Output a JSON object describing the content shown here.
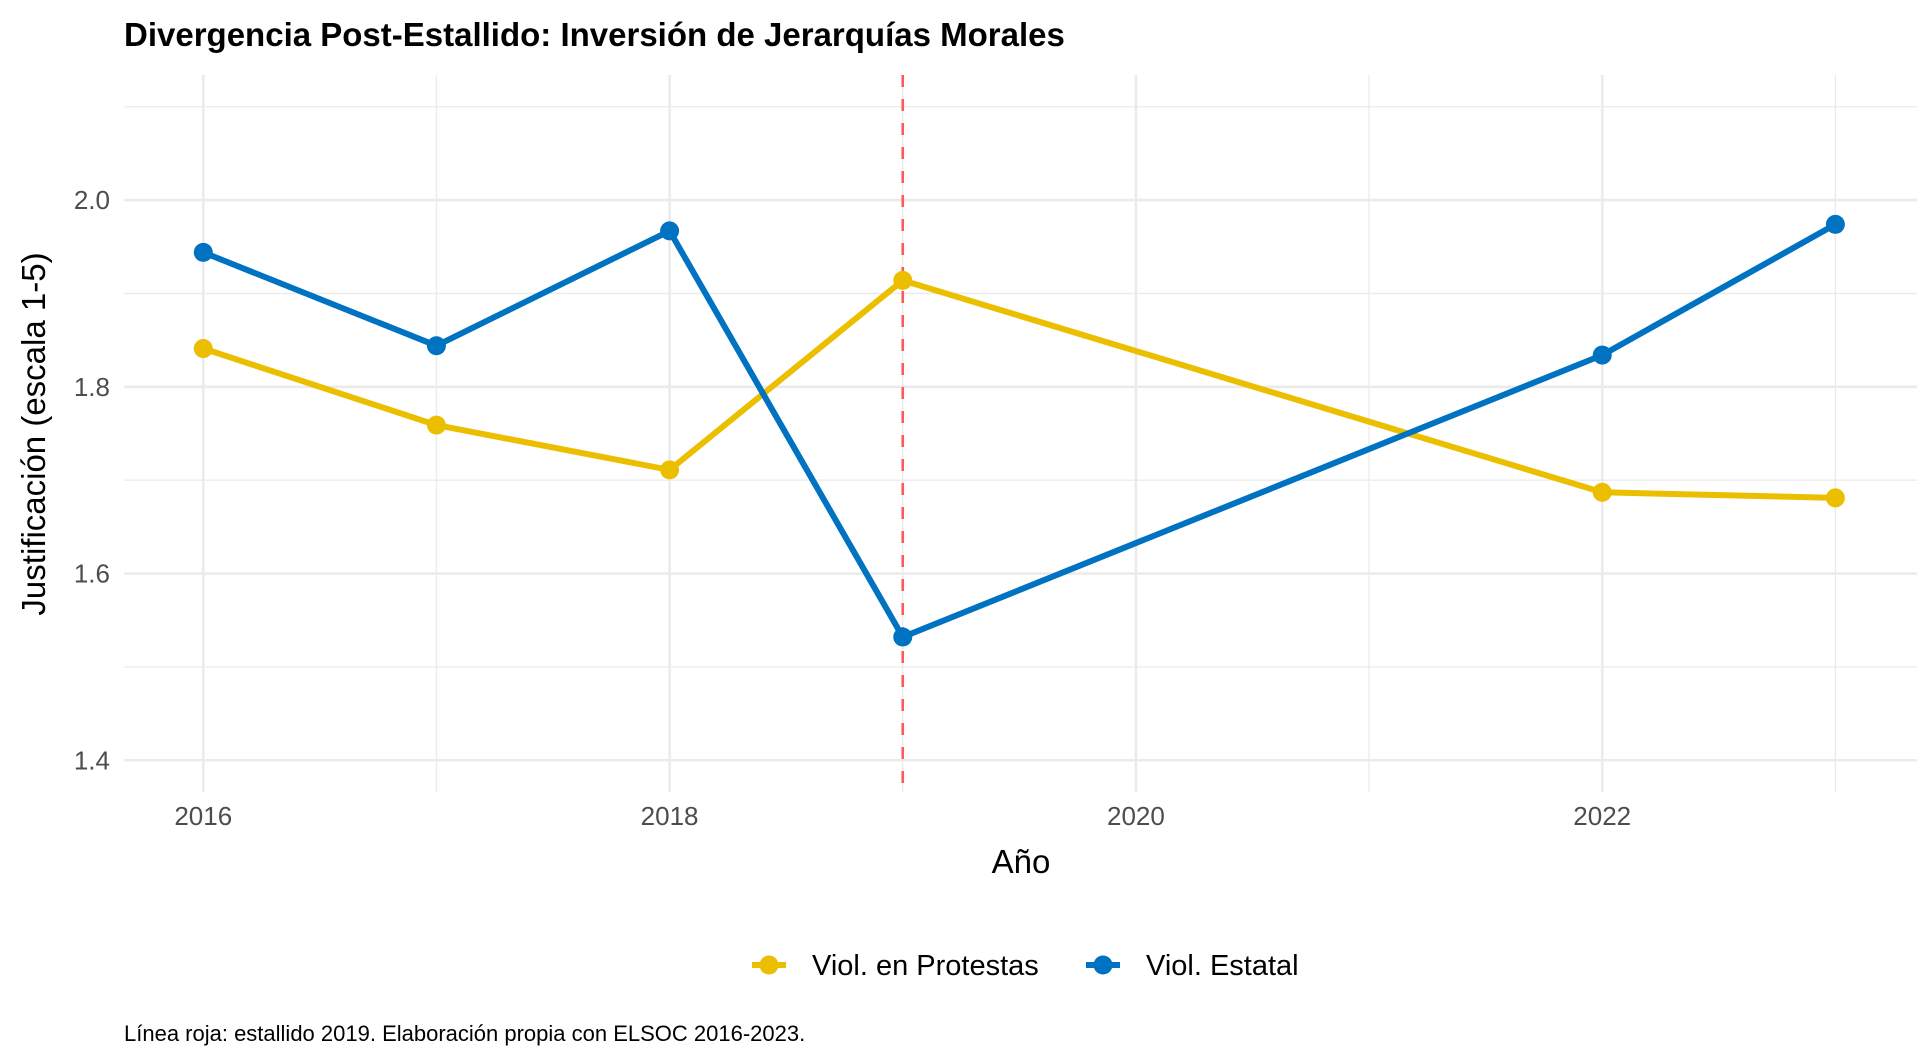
{
  "chart_data": {
    "type": "line",
    "title": "Divergencia Post-Estallido: Inversión de Jerarquías Morales",
    "xlabel": "Año",
    "ylabel": "Justificación (escala 1-5)",
    "caption": "Línea roja: estallido 2019. Elaboración propia con ELSOC 2016-2023.",
    "x": [
      2016,
      2017,
      2018,
      2019,
      2022,
      2023
    ],
    "xlim": [
      2015.66,
      2023.35
    ],
    "ylim": [
      1.366,
      2.134
    ],
    "x_ticks": [
      2016,
      2018,
      2020,
      2022
    ],
    "x_tick_labels": [
      "2016",
      "2018",
      "2020",
      "2022"
    ],
    "y_ticks": [
      1.4,
      1.6,
      1.8,
      2.0
    ],
    "y_tick_labels": [
      "1.4",
      "1.6",
      "1.8",
      "2.0"
    ],
    "grid": true,
    "legend_position": "bottom",
    "reference_line": {
      "axis": "x",
      "value": 2019,
      "color": "#ff5a5a",
      "style": "dashed"
    },
    "series": [
      {
        "name": "Viol. en Protestas",
        "color": "#EBBF00",
        "values": [
          1.841,
          1.759,
          1.711,
          1.914,
          1.687,
          1.681
        ]
      },
      {
        "name": "Viol. Estatal",
        "color": "#0072C2",
        "values": [
          1.944,
          1.844,
          1.967,
          1.532,
          1.834,
          1.974
        ]
      }
    ]
  }
}
